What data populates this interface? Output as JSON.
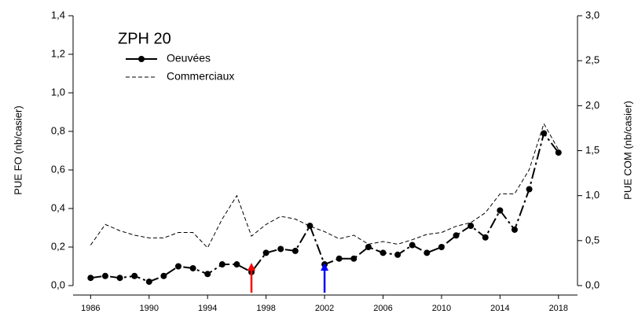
{
  "chart_data": {
    "type": "line",
    "title": "ZPH 20",
    "ylabel": "PUE FO (nb/casier)",
    "y2label": "PUE COM (nb/casier)",
    "x": [
      1986,
      1987,
      1988,
      1989,
      1990,
      1991,
      1992,
      1993,
      1994,
      1995,
      1996,
      1997,
      1998,
      1999,
      2000,
      2001,
      2002,
      2003,
      2004,
      2005,
      2006,
      2007,
      2008,
      2009,
      2010,
      2011,
      2012,
      2013,
      2014,
      2015,
      2016,
      2017,
      2018
    ],
    "series": [
      {
        "name": "Oeuvées",
        "color": "#000000",
        "values": [
          0.04,
          0.05,
          0.04,
          0.05,
          0.02,
          0.05,
          0.1,
          0.09,
          0.06,
          0.11,
          0.11,
          0.07,
          0.17,
          0.19,
          0.18,
          0.31,
          0.11,
          0.14,
          0.14,
          0.2,
          0.17,
          0.16,
          0.21,
          0.17,
          0.2,
          0.26,
          0.31,
          0.25,
          0.39,
          0.29,
          0.5,
          0.79,
          0.69
        ]
      },
      {
        "name": "Commerciaux",
        "color": "#000000",
        "axis": "y2",
        "values": [
          0.45,
          0.68,
          0.61,
          0.56,
          0.53,
          0.53,
          0.59,
          0.59,
          0.42,
          0.74,
          1.0,
          0.55,
          0.68,
          0.77,
          0.74,
          0.66,
          0.6,
          0.52,
          0.56,
          0.46,
          0.49,
          0.46,
          0.51,
          0.57,
          0.59,
          0.66,
          0.7,
          0.81,
          1.02,
          1.02,
          1.29,
          1.8,
          1.51
        ]
      }
    ],
    "xlim": [
      1984.8,
      2019.3
    ],
    "xticks": [
      1986,
      1990,
      1994,
      1998,
      2002,
      2006,
      2010,
      2014,
      2018
    ],
    "ylim": [
      0,
      1.4
    ],
    "yticks": [
      {
        "value": 0,
        "label": "0,0"
      },
      {
        "value": 0.2,
        "label": "0,2"
      },
      {
        "value": 0.4,
        "label": "0,4"
      },
      {
        "value": 0.6,
        "label": "0,6"
      },
      {
        "value": 0.8,
        "label": "0,8"
      },
      {
        "value": 1.0,
        "label": "1,0"
      },
      {
        "value": 1.2,
        "label": "1,2"
      },
      {
        "value": 1.4,
        "label": "1,4"
      }
    ],
    "y2lim": [
      0,
      3.0
    ],
    "y2ticks": [
      {
        "value": 0,
        "label": "0,0"
      },
      {
        "value": 0.5,
        "label": "0,5"
      },
      {
        "value": 1.0,
        "label": "1,0"
      },
      {
        "value": 1.5,
        "label": "1,5"
      },
      {
        "value": 2.0,
        "label": "2,0"
      },
      {
        "value": 2.5,
        "label": "2,5"
      },
      {
        "value": 3.0,
        "label": "3,0"
      }
    ],
    "arrows": [
      {
        "x": 1997,
        "color": "#ff0000"
      },
      {
        "x": 2002,
        "color": "#0000ff"
      }
    ]
  }
}
